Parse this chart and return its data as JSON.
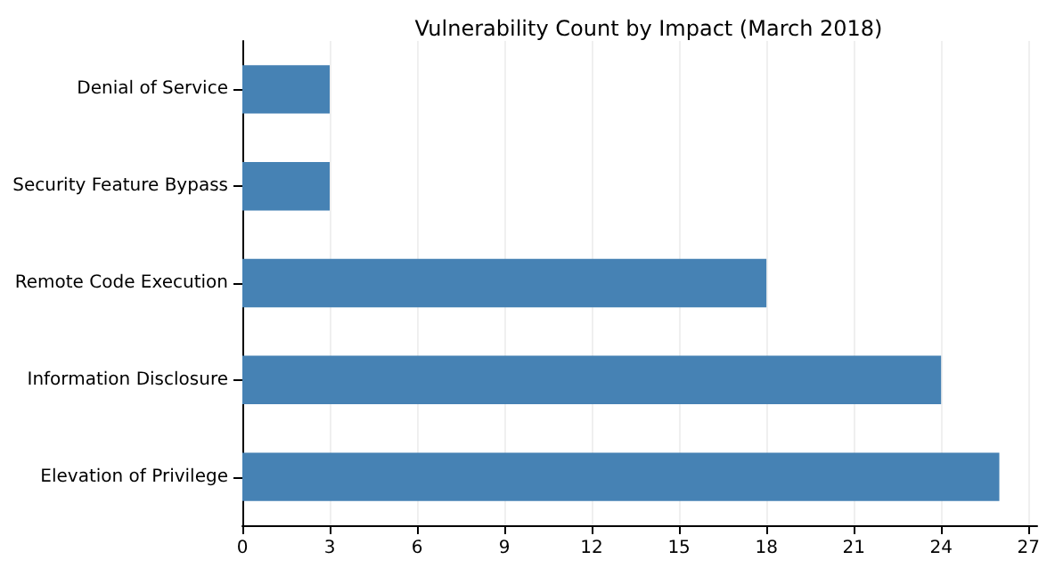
{
  "chart_data": {
    "type": "bar",
    "orientation": "horizontal",
    "title": "Vulnerability Count by Impact (March 2018)",
    "categories": [
      "Denial of Service",
      "Security Feature Bypass",
      "Remote Code Execution",
      "Information Disclosure",
      "Elevation of Privilege"
    ],
    "values": [
      3,
      3,
      18,
      24,
      26
    ],
    "color": "#4682b4",
    "xlim": [
      0,
      27.3
    ],
    "xticks": [
      0,
      3,
      6,
      9,
      12,
      15,
      18,
      21,
      24,
      27
    ],
    "grid": "x"
  }
}
